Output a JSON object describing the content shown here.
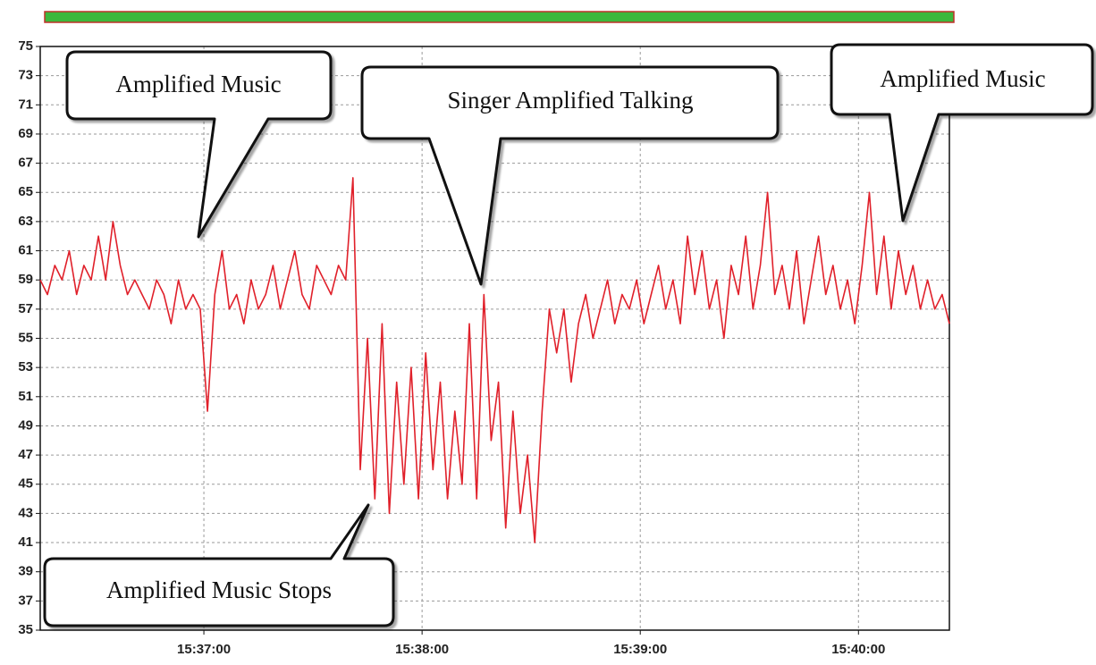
{
  "chart_data": {
    "type": "line",
    "annotations": [
      "Amplified Music",
      "Singer Amplified Talking",
      "Amplified Music",
      "Amplified Music Stops"
    ],
    "color": "#e0202a",
    "grid": true,
    "xlim": [
      "15:36:15",
      "15:40:25"
    ],
    "xticks": [
      "15:37:00",
      "15:38:00",
      "15:39:00",
      "15:40:00"
    ],
    "ylim": [
      35,
      75
    ],
    "yticks": [
      35,
      37,
      39,
      41,
      43,
      45,
      47,
      49,
      51,
      53,
      55,
      57,
      59,
      61,
      63,
      65,
      67,
      69,
      71,
      73,
      75
    ],
    "x": [
      "15:36:15",
      "15:36:17",
      "15:36:19",
      "15:36:21",
      "15:36:23",
      "15:36:25",
      "15:36:27",
      "15:36:29",
      "15:36:31",
      "15:36:33",
      "15:36:35",
      "15:36:37",
      "15:36:39",
      "15:36:41",
      "15:36:43",
      "15:36:45",
      "15:36:47",
      "15:36:49",
      "15:36:51",
      "15:36:53",
      "15:36:55",
      "15:36:57",
      "15:36:59",
      "15:37:01",
      "15:37:03",
      "15:37:05",
      "15:37:07",
      "15:37:09",
      "15:37:11",
      "15:37:13",
      "15:37:15",
      "15:37:17",
      "15:37:19",
      "15:37:21",
      "15:37:23",
      "15:37:25",
      "15:37:27",
      "15:37:29",
      "15:37:31",
      "15:37:33",
      "15:37:35",
      "15:37:37",
      "15:37:39",
      "15:37:41",
      "15:37:43",
      "15:37:45",
      "15:37:47",
      "15:37:49",
      "15:37:51",
      "15:37:53",
      "15:37:55",
      "15:37:57",
      "15:37:59",
      "15:38:01",
      "15:38:03",
      "15:38:05",
      "15:38:07",
      "15:38:09",
      "15:38:11",
      "15:38:13",
      "15:38:15",
      "15:38:17",
      "15:38:19",
      "15:38:21",
      "15:38:23",
      "15:38:25",
      "15:38:27",
      "15:38:29",
      "15:38:31",
      "15:38:33",
      "15:38:35",
      "15:38:37",
      "15:38:39",
      "15:38:41",
      "15:38:43",
      "15:38:45",
      "15:38:47",
      "15:38:49",
      "15:38:51",
      "15:38:53",
      "15:38:55",
      "15:38:57",
      "15:38:59",
      "15:39:01",
      "15:39:03",
      "15:39:05",
      "15:39:07",
      "15:39:09",
      "15:39:11",
      "15:39:13",
      "15:39:15",
      "15:39:17",
      "15:39:19",
      "15:39:21",
      "15:39:23",
      "15:39:25",
      "15:39:27",
      "15:39:29",
      "15:39:31",
      "15:39:33",
      "15:39:35",
      "15:39:37",
      "15:39:39",
      "15:39:41",
      "15:39:43",
      "15:39:45",
      "15:39:47",
      "15:39:49",
      "15:39:51",
      "15:39:53",
      "15:39:55",
      "15:39:57",
      "15:39:59",
      "15:40:01",
      "15:40:03",
      "15:40:05",
      "15:40:07",
      "15:40:09",
      "15:40:11",
      "15:40:13",
      "15:40:15",
      "15:40:17",
      "15:40:19",
      "15:40:21",
      "15:40:23",
      "15:40:25"
    ],
    "values": [
      59,
      58,
      60,
      59,
      61,
      58,
      60,
      59,
      62,
      59,
      63,
      60,
      58,
      59,
      58,
      57,
      59,
      58,
      56,
      59,
      57,
      58,
      57,
      50,
      58,
      61,
      57,
      58,
      56,
      59,
      57,
      58,
      60,
      57,
      59,
      61,
      58,
      57,
      60,
      59,
      58,
      60,
      59,
      66,
      46,
      55,
      44,
      56,
      43,
      52,
      45,
      53,
      44,
      54,
      46,
      52,
      44,
      50,
      45,
      56,
      44,
      58,
      48,
      52,
      42,
      50,
      43,
      47,
      41,
      50,
      57,
      54,
      57,
      52,
      56,
      58,
      55,
      57,
      59,
      56,
      58,
      57,
      59,
      56,
      58,
      60,
      57,
      59,
      56,
      62,
      58,
      61,
      57,
      59,
      55,
      60,
      58,
      62,
      57,
      60,
      65,
      58,
      60,
      57,
      61,
      56,
      59,
      62,
      58,
      60,
      57,
      59,
      56,
      60,
      65,
      58,
      62,
      57,
      61,
      58,
      60,
      57,
      59,
      57,
      58,
      56
    ]
  }
}
